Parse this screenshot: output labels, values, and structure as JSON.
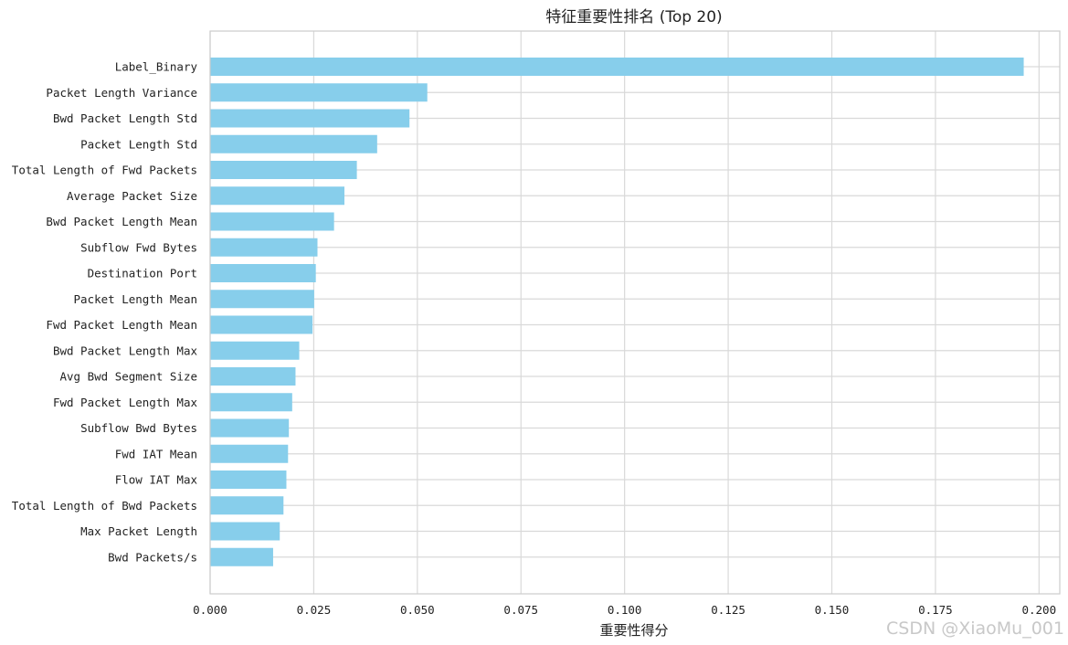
{
  "chart_data": {
    "type": "bar",
    "orientation": "horizontal",
    "title": "特征重要性排名 (Top 20)",
    "xlabel": "重要性得分",
    "ylabel": "",
    "xlim": [
      0,
      0.205
    ],
    "xticks": [
      0.0,
      0.025,
      0.05,
      0.075,
      0.1,
      0.125,
      0.15,
      0.175,
      0.2
    ],
    "xtick_labels": [
      "0.000",
      "0.025",
      "0.050",
      "0.075",
      "0.100",
      "0.125",
      "0.150",
      "0.175",
      "0.200"
    ],
    "grid": true,
    "bar_color": "#87ceeb",
    "categories": [
      "Label_Binary",
      "Packet Length Variance",
      "Bwd Packet Length Std",
      "Packet Length Std",
      "Total Length of Fwd Packets",
      "Average Packet Size",
      "Bwd Packet Length Mean",
      "Subflow Fwd Bytes",
      "Destination Port",
      "Packet Length Mean",
      "Fwd Packet Length Mean",
      "Bwd Packet Length Max",
      "Avg Bwd Segment Size",
      "Fwd Packet Length Max",
      "Subflow Bwd Bytes",
      "Fwd IAT Mean",
      "Flow IAT Max",
      "Total Length of Bwd Packets",
      "Max Packet Length",
      "Bwd Packets/s"
    ],
    "values": [
      0.1963,
      0.0524,
      0.0481,
      0.0403,
      0.0354,
      0.0324,
      0.0299,
      0.0259,
      0.0255,
      0.0251,
      0.0247,
      0.0215,
      0.0206,
      0.0198,
      0.019,
      0.0188,
      0.0184,
      0.0177,
      0.0168,
      0.0152
    ]
  },
  "watermark": "CSDN @XiaoMu_001"
}
